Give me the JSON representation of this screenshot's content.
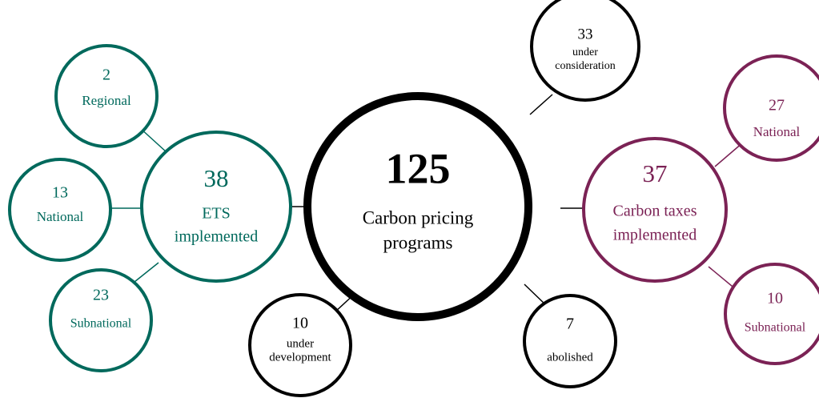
{
  "nodes": [
    {
      "number": 125,
      "label_lines": [
        "Carbon pricing",
        "programs"
      ]
    },
    {
      "number": 38,
      "label_lines": [
        "ETS",
        "implemented"
      ]
    },
    {
      "number": 2,
      "label_lines": [
        "Regional"
      ]
    },
    {
      "number": 13,
      "label_lines": [
        "National"
      ]
    },
    {
      "number": 23,
      "label_lines": [
        "Subnational"
      ]
    },
    {
      "number": 37,
      "label_lines": [
        "Carbon taxes",
        "implemented"
      ]
    },
    {
      "number": 27,
      "label_lines": [
        "National"
      ]
    },
    {
      "number": 10,
      "label_lines": [
        "Subnational"
      ]
    },
    {
      "number": 33,
      "label_lines": [
        "under",
        "consideration"
      ]
    },
    {
      "number": 10,
      "label_lines": [
        "under",
        "development"
      ]
    },
    {
      "number": 7,
      "label_lines": [
        "abolished"
      ]
    }
  ]
}
